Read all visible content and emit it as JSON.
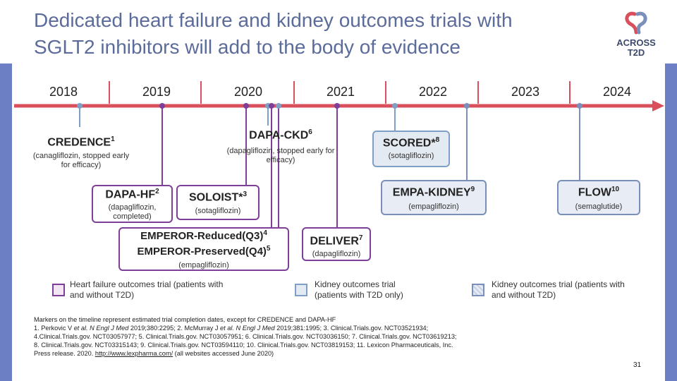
{
  "title_line1": "Dedicated heart failure and kidney outcomes trials with",
  "title_line2": "SGLT2 inhibitors will add to the body of evidence",
  "logo": {
    "line1": "ACROSS",
    "line2": "T2D",
    "icon": "heart-kidney-logo-icon"
  },
  "years": [
    "2018",
    "2019",
    "2020",
    "2021",
    "2022",
    "2023",
    "2024"
  ],
  "colors": {
    "heart_failure": "#7d3f98",
    "kidney_t2d": "#7fa0c6",
    "kidney_all": "#7a8fba",
    "timeline": "#d94f5c",
    "accent_bar": "#6c7fc4"
  },
  "trials": {
    "credence": {
      "name": "CREDENCE",
      "sup": "1",
      "detail": "(canagliflozin, stopped early for efficacy)"
    },
    "dapa_ckd": {
      "name": "DAPA-CKD",
      "sup": "6",
      "detail": "(dapagliflozin, stopped early for efficacy)"
    },
    "scored": {
      "name": "SCORED*",
      "sup": "8",
      "detail": "(sotagliflozin)"
    },
    "dapa_hf": {
      "name": "DAPA-HF",
      "sup": "2",
      "detail": "(dapagliflozin, completed)"
    },
    "soloist": {
      "name": "SOLOIST*",
      "sup": "3",
      "detail": "(sotagliflozin)"
    },
    "empa_kidney": {
      "name": "EMPA-KIDNEY",
      "sup": "9",
      "detail": "(empagliflozin)"
    },
    "flow": {
      "name": "FLOW",
      "sup": "10",
      "detail": "(semaglutide)"
    },
    "emperor_reduced": {
      "name": "EMPEROR-Reduced(Q3)",
      "sup": "4"
    },
    "emperor_preserved": {
      "name": "EMPEROR-Preserved(Q4)",
      "sup": "5"
    },
    "emperor_detail": "(empagliflozin)",
    "deliver": {
      "name": "DELIVER",
      "sup": "7",
      "detail": "(dapagliflozin)"
    }
  },
  "legend": {
    "hf": "Heart failure outcomes trial (patients with and without T2D)",
    "kid_t2d": "Kidney outcomes trial (patients with T2D only)",
    "kid_all": "Kidney outcomes trial (patients with and without T2D)"
  },
  "footnote": {
    "line1": "Markers on the timeline represent estimated trial completion dates, except for CREDENCE and DAPA-HF",
    "line2a": "1. Perkovic V ",
    "line2b": "et al. N Engl J Med",
    "line2c": " 2019;380:2295; 2. McMurray J ",
    "line2d": "et al. N Engl J Med",
    "line2e": " 2019;381:1995; 3. Clinical.Trials.gov. NCT03521934;",
    "line3": "4.Clinical.Trials.gov. NCT03057977; 5. Clinical.Trials.gov. NCT03057951; 6. Clinical.Trials.gov. NCT03036150; 7. Clinical.Trials.gov. NCT03619213;",
    "line4": "8. Clinical.Trials.gov. NCT03315143; 9. Clinical.Trials.gov. NCT03594110; 10. Clinical.Trials.gov. NCT03819153; 11. Lexicon Pharmaceuticals, Inc.",
    "line5a": "Press release. 2020. ",
    "line5link": "http://www.lexpharma.com/",
    "line5b": " (all websites accessed June 2020)"
  },
  "page_number": "31"
}
